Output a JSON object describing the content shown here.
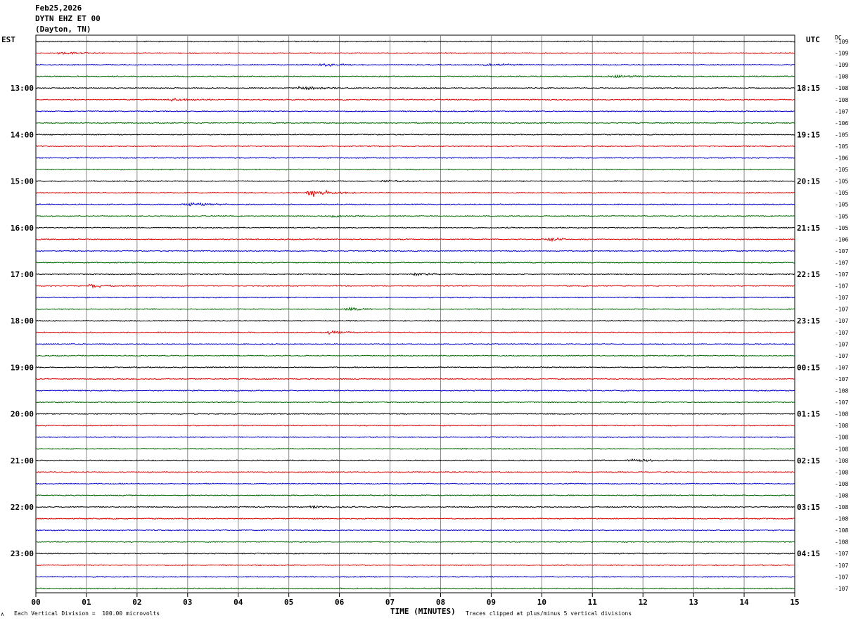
{
  "header": {
    "date": "Feb25,2026",
    "station": "DYTN EHZ ET 00",
    "location": "(Dayton, TN)"
  },
  "labels": {
    "left_zone": "EST",
    "right_zone": "UTC",
    "dc_header": "DC"
  },
  "footer": {
    "corner_mark": "∧",
    "scale_note": "Each Vertical Division =  100.00 microvolts",
    "xlabel": "TIME (MINUTES)",
    "clip_note": "Traces clipped at plus/minus 5 vertical divisions"
  },
  "chart_data": {
    "type": "line",
    "description_kind": "helicorder",
    "xlabel": "TIME (MINUTES)",
    "xlim": [
      0,
      15
    ],
    "x_ticks": [
      "00",
      "01",
      "02",
      "03",
      "04",
      "05",
      "06",
      "07",
      "08",
      "09",
      "10",
      "11",
      "12",
      "13",
      "14",
      "15"
    ],
    "traces_per_hour": 4,
    "trace_count": 48,
    "trace_colors": [
      "#000000",
      "#dd0000",
      "#0000cc",
      "#006600"
    ],
    "est_hour_labels": [
      {
        "trace": 4,
        "label": "13:00"
      },
      {
        "trace": 8,
        "label": "14:00"
      },
      {
        "trace": 12,
        "label": "15:00"
      },
      {
        "trace": 16,
        "label": "16:00"
      },
      {
        "trace": 20,
        "label": "17:00"
      },
      {
        "trace": 24,
        "label": "18:00"
      },
      {
        "trace": 28,
        "label": "19:00"
      },
      {
        "trace": 32,
        "label": "20:00"
      },
      {
        "trace": 36,
        "label": "21:00"
      },
      {
        "trace": 40,
        "label": "22:00"
      },
      {
        "trace": 44,
        "label": "23:00"
      }
    ],
    "utc_hour_labels": [
      {
        "trace": 4,
        "label": "18:15"
      },
      {
        "trace": 8,
        "label": "19:15"
      },
      {
        "trace": 12,
        "label": "20:15"
      },
      {
        "trace": 16,
        "label": "21:15"
      },
      {
        "trace": 20,
        "label": "22:15"
      },
      {
        "trace": 24,
        "label": "23:15"
      },
      {
        "trace": 28,
        "label": "00:15"
      },
      {
        "trace": 32,
        "label": "01:15"
      },
      {
        "trace": 36,
        "label": "02:15"
      },
      {
        "trace": 40,
        "label": "03:15"
      },
      {
        "trace": 44,
        "label": "04:15"
      }
    ],
    "dc_offsets": [
      "-109",
      "-109",
      "-109",
      "-108",
      "-108",
      "-108",
      "-107",
      "-106",
      "-105",
      "-105",
      "-106",
      "-105",
      "-105",
      "-105",
      "-105",
      "-105",
      "-105",
      "-106",
      "-107",
      "-107",
      "-107",
      "-107",
      "-107",
      "-107",
      "-107",
      "-107",
      "-107",
      "-107",
      "-107",
      "-107",
      "-108",
      "-107",
      "-108",
      "-108",
      "-108",
      "-108",
      "-108",
      "-108",
      "-108",
      "-108",
      "-108",
      "-108",
      "-108",
      "-108",
      "-107",
      "-107",
      "-107",
      "-107"
    ],
    "events": [
      {
        "trace": 1,
        "minute": 0.5,
        "amplitude": 1.6
      },
      {
        "trace": 2,
        "minute": 5.7,
        "amplitude": 1.8
      },
      {
        "trace": 2,
        "minute": 8.9,
        "amplitude": 1.8
      },
      {
        "trace": 3,
        "minute": 11.4,
        "amplitude": 2.0
      },
      {
        "trace": 4,
        "minute": 5.2,
        "amplitude": 3.2
      },
      {
        "trace": 5,
        "minute": 2.7,
        "amplitude": 1.8
      },
      {
        "trace": 12,
        "minute": 6.9,
        "amplitude": 1.4
      },
      {
        "trace": 13,
        "minute": 5.45,
        "amplitude": 6.5
      },
      {
        "trace": 14,
        "minute": 3.0,
        "amplitude": 3.2
      },
      {
        "trace": 15,
        "minute": 5.9,
        "amplitude": 1.6
      },
      {
        "trace": 17,
        "minute": 10.1,
        "amplitude": 3.0
      },
      {
        "trace": 20,
        "minute": 7.5,
        "amplitude": 1.8
      },
      {
        "trace": 21,
        "minute": 1.1,
        "amplitude": 2.0
      },
      {
        "trace": 23,
        "minute": 6.2,
        "amplitude": 2.0
      },
      {
        "trace": 25,
        "minute": 5.8,
        "amplitude": 2.0
      },
      {
        "trace": 36,
        "minute": 11.8,
        "amplitude": 2.0
      },
      {
        "trace": 40,
        "minute": 5.5,
        "amplitude": 2.0
      }
    ]
  }
}
